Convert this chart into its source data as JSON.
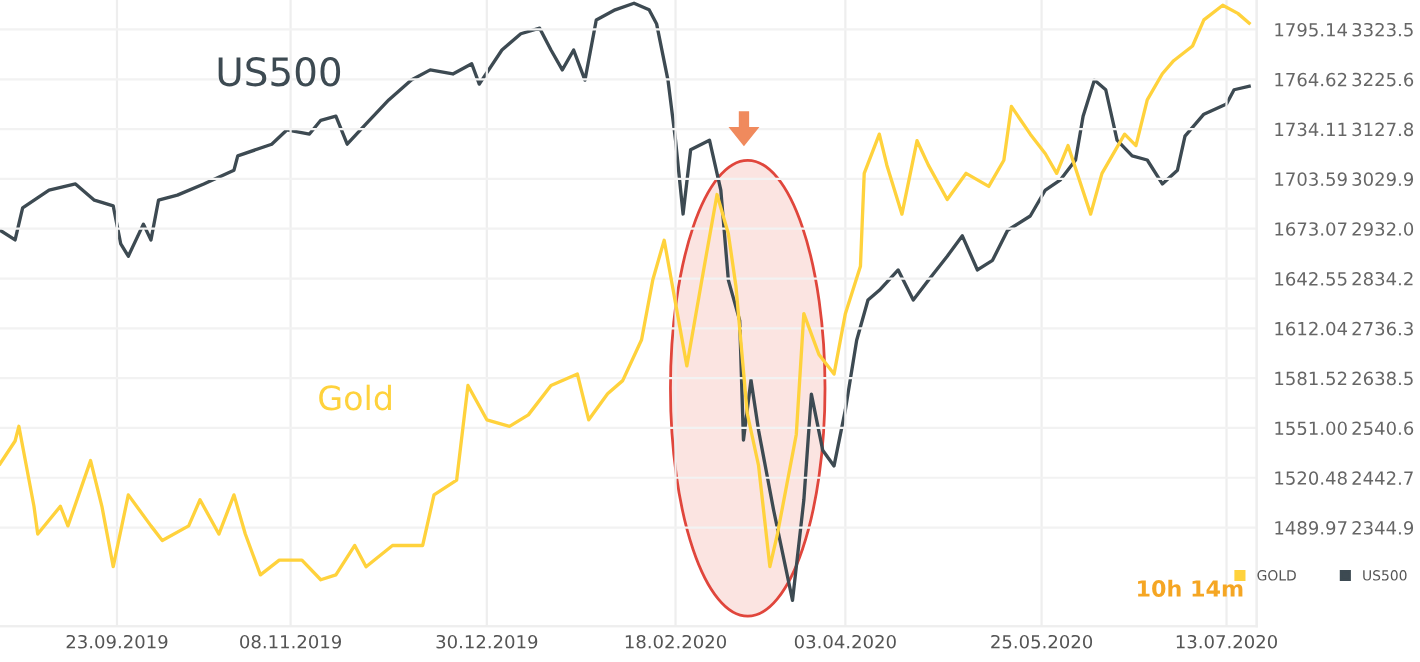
{
  "chart_data": {
    "type": "line",
    "xlim": [
      "2019-08-23",
      "2020-07-21"
    ],
    "xticks": [
      {
        "value": "2019-09-23",
        "label": "23.09.2019"
      },
      {
        "value": "2019-11-08",
        "label": "08.11.2019"
      },
      {
        "value": "2019-12-30",
        "label": "30.12.2019"
      },
      {
        "value": "2020-02-18",
        "label": "18.02.2020"
      },
      {
        "value": "2020-04-03",
        "label": "03.04.2020"
      },
      {
        "value": "2020-05-25",
        "label": "25.05.2020"
      },
      {
        "value": "2020-07-13",
        "label": "13.07.2020"
      }
    ],
    "ylim": [
      1429.5,
      1813.2
    ],
    "yticks": [
      1489.97,
      1520.48,
      {
        "value": 1551.0,
        "label": "1551.00"
      },
      1581.52,
      1612.04,
      1642.55,
      1673.07,
      1703.59,
      1734.11,
      1764.62,
      1795.14
    ],
    "y2lim": [
      2151.1,
      3381.3
    ],
    "y2ticks": [
      2344.9,
      2442.7,
      2540.6,
      2638.5,
      2736.3,
      2834.2,
      {
        "value": 2932.0,
        "label": "2932.0"
      },
      3029.9,
      3127.8,
      3225.6,
      3323.5
    ],
    "grid": true,
    "legend": "bottom right",
    "series": [
      {
        "name": "GOLD",
        "color": "#ffd23c",
        "x": [
          "2019-08-23",
          "2019-08-27",
          "2019-08-28",
          "2019-09-01",
          "2019-09-02",
          "2019-09-08",
          "2019-09-10",
          "2019-09-16",
          "2019-09-19",
          "2019-09-22",
          "2019-09-26",
          "2019-10-02",
          "2019-10-05",
          "2019-10-12",
          "2019-10-15",
          "2019-10-20",
          "2019-10-24",
          "2019-10-27",
          "2019-10-31",
          "2019-11-05",
          "2019-11-11",
          "2019-11-16",
          "2019-11-20",
          "2019-11-25",
          "2019-11-28",
          "2019-12-05",
          "2019-12-13",
          "2019-12-16",
          "2019-12-22",
          "2019-12-25",
          "2019-12-30",
          "2020-01-05",
          "2020-01-10",
          "2020-01-16",
          "2020-01-23",
          "2020-01-26",
          "2020-01-31",
          "2020-02-04",
          "2020-02-09",
          "2020-02-12",
          "2020-02-15",
          "2020-02-21",
          "2020-02-25",
          "2020-02-29",
          "2020-03-03",
          "2020-03-05",
          "2020-03-08",
          "2020-03-11",
          "2020-03-14",
          "2020-03-16",
          "2020-03-21",
          "2020-03-23",
          "2020-03-27",
          "2020-03-31",
          "2020-04-03",
          "2020-04-07",
          "2020-04-08",
          "2020-04-12",
          "2020-04-14",
          "2020-04-18",
          "2020-04-22",
          "2020-04-25",
          "2020-04-30",
          "2020-05-05",
          "2020-05-11",
          "2020-05-15",
          "2020-05-17",
          "2020-05-22",
          "2020-05-26",
          "2020-05-29",
          "2020-06-01",
          "2020-06-07",
          "2020-06-10",
          "2020-06-16",
          "2020-06-19",
          "2020-06-22",
          "2020-06-26",
          "2020-06-29",
          "2020-07-04",
          "2020-07-07",
          "2020-07-12",
          "2020-07-16",
          "2020-07-19"
        ],
        "values": [
          1529,
          1543,
          1552,
          1503,
          1486,
          1503,
          1491,
          1531,
          1503,
          1466,
          1510,
          1491,
          1482,
          1491,
          1507,
          1486,
          1510,
          1486,
          1461,
          1470,
          1470,
          1458,
          1461,
          1479,
          1466,
          1479,
          1479,
          1510,
          1519,
          1577,
          1556,
          1552,
          1559,
          1577,
          1584,
          1556,
          1572,
          1580,
          1605,
          1642,
          1666,
          1589,
          1642,
          1694,
          1670,
          1638,
          1560,
          1528,
          1466,
          1486,
          1547,
          1621,
          1596,
          1584,
          1621,
          1650,
          1707,
          1731,
          1712,
          1682,
          1727,
          1712,
          1691,
          1707,
          1699,
          1715,
          1748,
          1731,
          1719,
          1707,
          1724,
          1682,
          1707,
          1731,
          1724,
          1752,
          1768,
          1776,
          1785,
          1801,
          1810,
          1805,
          1799
        ]
      },
      {
        "name": "US500",
        "color": "#3d4a52",
        "axis": "y2",
        "x": [
          "2019-08-23",
          "2019-08-27",
          "2019-08-29",
          "2019-09-05",
          "2019-09-12",
          "2019-09-17",
          "2019-09-22",
          "2019-09-24",
          "2019-09-26",
          "2019-09-30",
          "2019-10-02",
          "2019-10-04",
          "2019-10-09",
          "2019-10-16",
          "2019-10-24",
          "2019-10-25",
          "2019-11-03",
          "2019-11-07",
          "2019-11-13",
          "2019-11-16",
          "2019-11-20",
          "2019-11-23",
          "2019-11-28",
          "2019-12-04",
          "2019-12-10",
          "2019-12-15",
          "2019-12-21",
          "2019-12-26",
          "2019-12-28",
          "2020-01-03",
          "2020-01-08",
          "2020-01-13",
          "2020-01-16",
          "2020-01-19",
          "2020-01-22",
          "2020-01-25",
          "2020-01-28",
          "2020-02-02",
          "2020-02-07",
          "2020-02-11",
          "2020-02-13",
          "2020-02-16",
          "2020-02-18",
          "2020-02-20",
          "2020-02-22",
          "2020-02-27",
          "2020-03-01",
          "2020-03-03",
          "2020-03-06",
          "2020-03-07",
          "2020-03-09",
          "2020-03-11",
          "2020-03-15",
          "2020-03-20",
          "2020-03-23",
          "2020-03-25",
          "2020-03-28",
          "2020-03-31",
          "2020-04-03",
          "2020-04-06",
          "2020-04-09",
          "2020-04-12",
          "2020-04-17",
          "2020-04-21",
          "2020-04-25",
          "2020-04-30",
          "2020-05-04",
          "2020-05-08",
          "2020-05-12",
          "2020-05-16",
          "2020-05-22",
          "2020-05-26",
          "2020-05-30",
          "2020-06-03",
          "2020-06-05",
          "2020-06-08",
          "2020-06-11",
          "2020-06-14",
          "2020-06-18",
          "2020-06-22",
          "2020-06-26",
          "2020-06-30",
          "2020-07-02",
          "2020-07-07",
          "2020-07-13",
          "2020-07-15",
          "2020-07-19"
        ],
        "values": [
          2929,
          2910,
          2973,
          3008,
          3020,
          2988,
          2977,
          2902,
          2878,
          2941,
          2910,
          2988,
          2998,
          3020,
          3047,
          3075,
          3098,
          3126,
          3118,
          3145,
          3153,
          3098,
          3138,
          3185,
          3224,
          3244,
          3236,
          3256,
          3216,
          3283,
          3315,
          3326,
          3283,
          3244,
          3283,
          3224,
          3342,
          3362,
          3375,
          3362,
          3334,
          3224,
          3106,
          2961,
          3087,
          3106,
          3008,
          2831,
          2752,
          2517,
          2635,
          2536,
          2379,
          2202,
          2399,
          2607,
          2497,
          2466,
          2576,
          2713,
          2792,
          2811,
          2851,
          2792,
          2831,
          2878,
          2918,
          2851,
          2870,
          2929,
          2957,
          3008,
          3028,
          3067,
          3153,
          3224,
          3205,
          3106,
          3075,
          3067,
          3020,
          3047,
          3114,
          3157,
          3177,
          3205,
          3212
        ]
      }
    ],
    "annotations": [
      "US500",
      "Gold",
      "10h 14m"
    ]
  }
}
